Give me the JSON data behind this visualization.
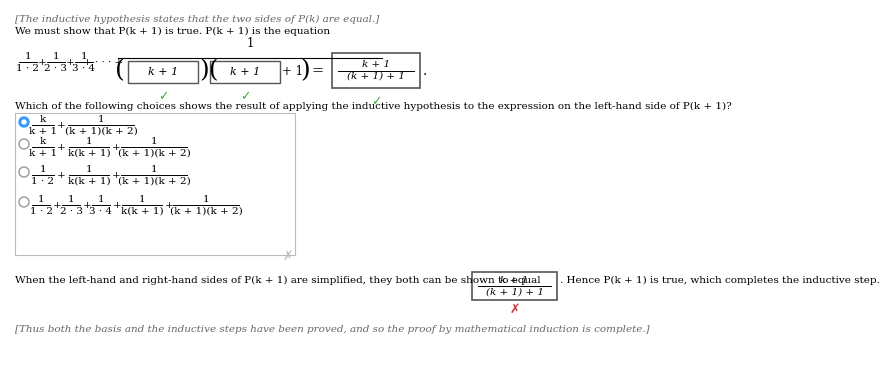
{
  "bg_color": "#ffffff",
  "italic_gray": "#666666",
  "text_color": "#000000",
  "green_color": "#44aa44",
  "red_color": "#cc3333",
  "radio_blue": "#3399ff",
  "line1": "[The inductive hypothesis states that the two sides of P(k) are equal.]",
  "line2": "We must show that P(k + 1) is true. P(k + 1) is the equation",
  "question_line": "Which of the following choices shows the result of applying the inductive hypothesis to the expression on the left-hand side of P(k + 1)?",
  "equal_text": "When the left-hand and right-hand sides of P(k + 1) are simplified, they both can be shown to equal",
  "hence_text": ". Hence P(k + 1) is true, which completes the inductive step.",
  "bottom_line": "[Thus both the basis and the inductive steps have been proved, and so the proof by mathematical induction is complete.]"
}
